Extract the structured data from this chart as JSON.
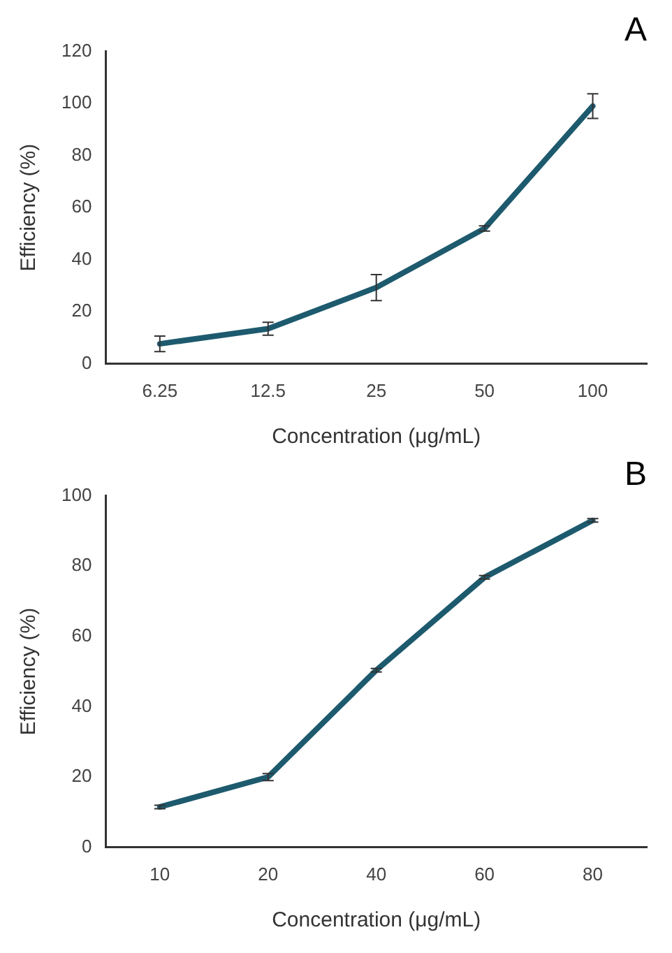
{
  "chart_data": [
    {
      "type": "line",
      "title": "A",
      "xlabel": "Concentration (μg/mL)",
      "ylabel": "Efficiency (%)",
      "categories": [
        "6.25",
        "12.5",
        "25",
        "50",
        "100"
      ],
      "series": [
        {
          "color": "#1d5a6e",
          "values": [
            7.7,
            13.5,
            29.3,
            52,
            99
          ],
          "errors": [
            3,
            2.5,
            5,
            1,
            4.7
          ]
        }
      ],
      "ylim": [
        0,
        120
      ],
      "yticks": [
        0,
        20,
        40,
        60,
        80,
        100,
        120
      ],
      "grid": false,
      "legend": false,
      "marker": "none",
      "line_style": "solid"
    },
    {
      "type": "line",
      "title": "B",
      "xlabel": "Concentration (μg/mL)",
      "ylabel": "Efficiency (%)",
      "categories": [
        "10",
        "20",
        "40",
        "60",
        "80"
      ],
      "series": [
        {
          "color": "#1d5a6e",
          "values": [
            11.5,
            20,
            50.4,
            76.8,
            93
          ],
          "errors": [
            0.5,
            1,
            0.5,
            0.5,
            0.5
          ]
        }
      ],
      "ylim": [
        0,
        100
      ],
      "yticks": [
        0,
        20,
        40,
        60,
        80,
        100
      ],
      "grid": false,
      "legend": false,
      "marker": "none",
      "line_style": "solid"
    }
  ]
}
